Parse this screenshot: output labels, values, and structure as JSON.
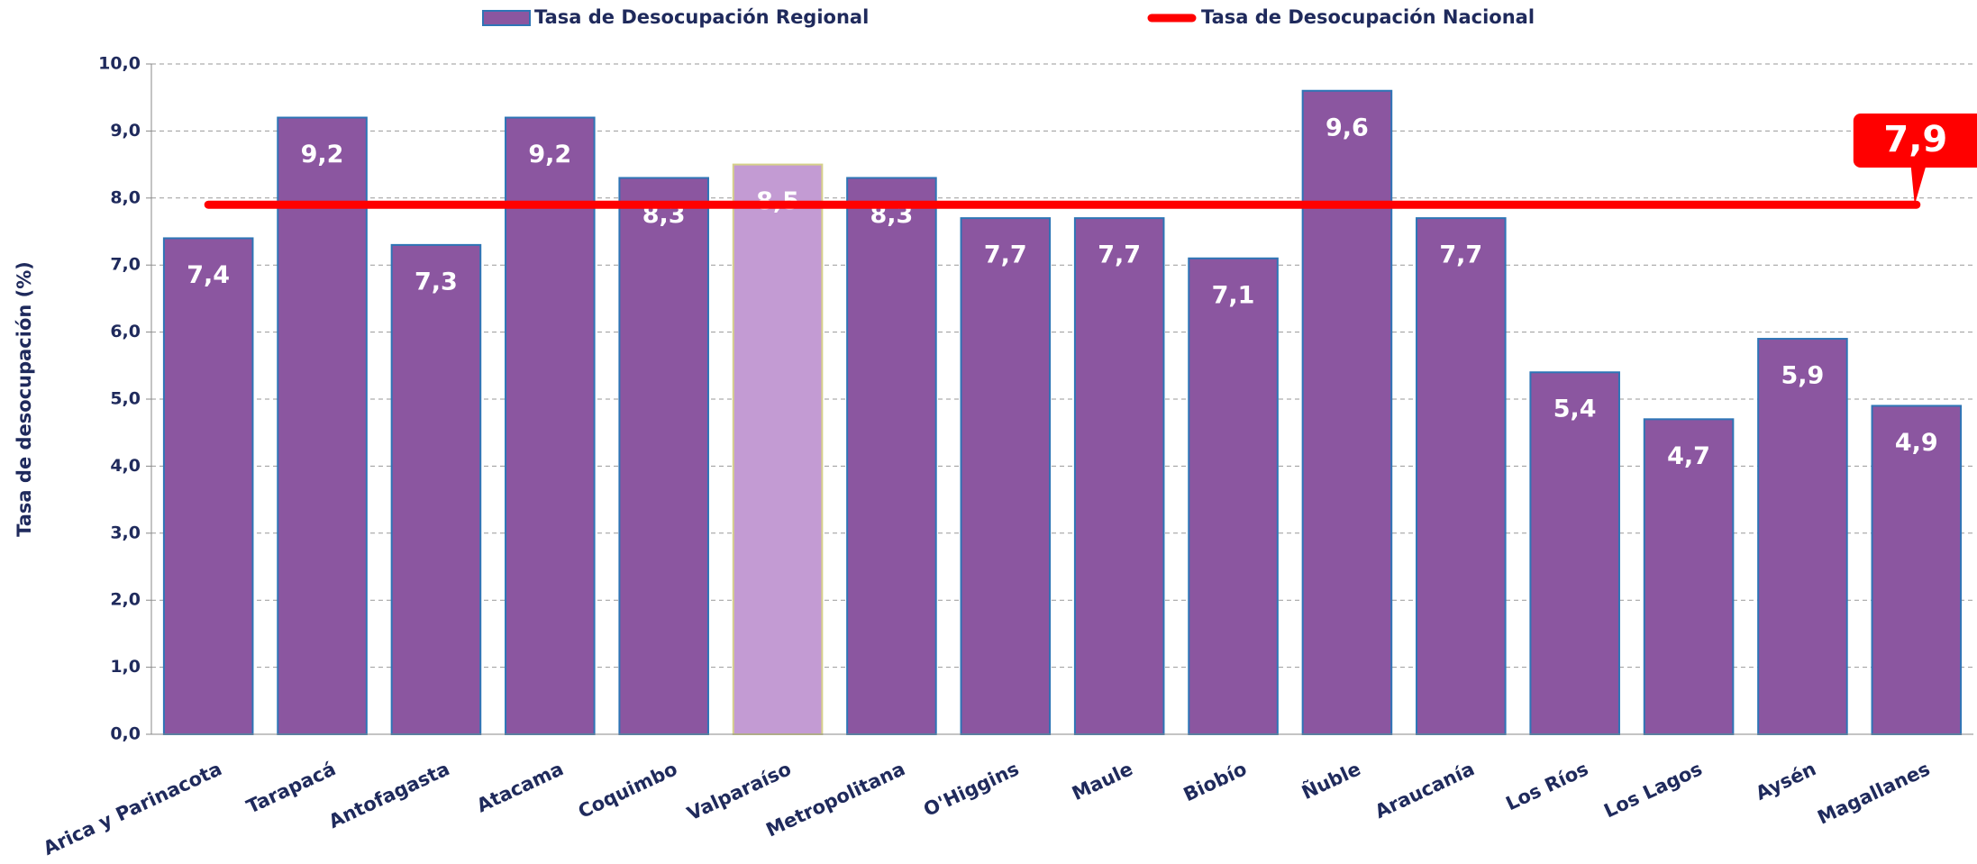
{
  "chart_data": {
    "type": "bar",
    "categories": [
      "Arica y Parinacota",
      "Tarapacá",
      "Antofagasta",
      "Atacama",
      "Coquimbo",
      "Valparaíso",
      "Metropolitana",
      "O'Higgins",
      "Maule",
      "Biobío",
      "Ñuble",
      "Araucanía",
      "Los Ríos",
      "Los Lagos",
      "Aysén",
      "Magallanes"
    ],
    "series": [
      {
        "name": "Tasa de Desocupación Regional",
        "color": "#8b56a0",
        "colors": [
          "#8b56a0",
          "#8b56a0",
          "#8b56a0",
          "#8b56a0",
          "#8b56a0",
          "#c39bd3",
          "#8b56a0",
          "#8b56a0",
          "#8b56a0",
          "#8b56a0",
          "#8b56a0",
          "#8b56a0",
          "#8b56a0",
          "#8b56a0",
          "#8b56a0",
          "#8b56a0"
        ],
        "values": [
          7.4,
          9.2,
          7.3,
          9.2,
          8.3,
          8.5,
          8.3,
          7.7,
          7.7,
          7.1,
          9.6,
          7.7,
          5.4,
          4.7,
          5.9,
          4.9
        ],
        "value_labels": [
          "7,4",
          "9,2",
          "7,3",
          "9,2",
          "8,3",
          "8,5",
          "8,3",
          "7,7",
          "7,7",
          "7,1",
          "9,6",
          "7,7",
          "5,4",
          "4,7",
          "5,9",
          "4,9"
        ]
      },
      {
        "name": "Tasa de Desocupación Nacional",
        "color": "#ff0000",
        "value": 7.9,
        "value_label": "7,9"
      }
    ],
    "ylabel": "Tasa de desocupación (%)",
    "ylim": [
      0,
      10
    ],
    "yticks": [
      {
        "value": 0,
        "label": "0,0"
      },
      {
        "value": 1,
        "label": "1,0"
      },
      {
        "value": 2,
        "label": "2,0"
      },
      {
        "value": 3,
        "label": "3,0"
      },
      {
        "value": 4,
        "label": "4,0"
      },
      {
        "value": 5,
        "label": "5,0"
      },
      {
        "value": 6,
        "label": "6,0"
      },
      {
        "value": 7,
        "label": "7,0"
      },
      {
        "value": 8,
        "label": "8,0"
      },
      {
        "value": 9,
        "label": "9,0"
      },
      {
        "value": 10,
        "label": "10,0"
      }
    ],
    "grid": true,
    "legend": "top"
  }
}
